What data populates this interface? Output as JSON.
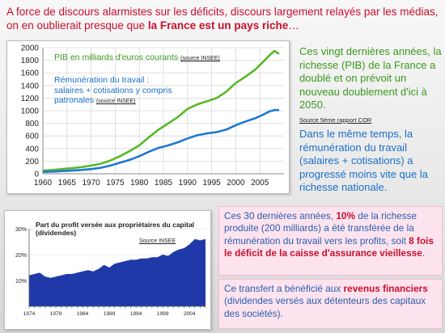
{
  "intro": {
    "part1": "A force de discours alarmistes sur les déficits, discours largement relayés par les médias, on en oublierait presque que ",
    "highlight": "la France est un pays riche",
    "part2": "…"
  },
  "right": {
    "para1": "Ces vingt dernières années, la richesse (PIB) de la France a doublé et on prévoit un nouveau doublement d'ici à 2050.",
    "para1_source": "Source 5ème rapport COR",
    "para2": "Dans le même temps, la rémunération du travail (salaires + cotisations) a progressé moins vite que la richesse nationale."
  },
  "pink1": {
    "t1": "Ces 30 dernières années, ",
    "h1": "10%",
    "t2": " de la richesse produite (200 milliards) a été transférée de la rémunération du travail vers les profits, soit ",
    "h2": "8 fois le déficit de la caisse d'assurance vieillesse",
    "t3": "."
  },
  "pink2": {
    "t1": "Ce transfert a bénéficié aux ",
    "h1": "revenus financiers",
    "t2": " (dividendes versés aux détenteurs des capitaux des sociétés)."
  },
  "colors": {
    "pib": "#58b82a",
    "remuneration": "#1f78d1",
    "profit": "#1f3aa8",
    "accent_red": "#c8102e"
  },
  "chart_data": [
    {
      "type": "line",
      "x_ticks": [
        "1960",
        "1965",
        "1970",
        "1975",
        "1980",
        "1985",
        "1990",
        "1995",
        "2000",
        "2005"
      ],
      "y_ticks": [
        "0",
        "200",
        "400",
        "600",
        "800",
        "1000",
        "1200",
        "1400",
        "1600",
        "1800",
        "2000"
      ],
      "xlim": [
        1960,
        2010
      ],
      "ylim": [
        0,
        2000
      ],
      "grid": true,
      "series": [
        {
          "name": "PIB en milliards d'euros courants",
          "source": "(source INSEE)",
          "x": [
            1960,
            1962,
            1964,
            1966,
            1968,
            1970,
            1972,
            1974,
            1976,
            1978,
            1980,
            1982,
            1984,
            1986,
            1988,
            1990,
            1992,
            1994,
            1996,
            1998,
            2000,
            2002,
            2004,
            2006,
            2007,
            2008,
            2009
          ],
          "values": [
            50,
            60,
            75,
            88,
            105,
            130,
            160,
            210,
            280,
            360,
            450,
            580,
            700,
            800,
            900,
            1030,
            1100,
            1150,
            1200,
            1300,
            1440,
            1540,
            1650,
            1800,
            1880,
            1950,
            1900
          ]
        },
        {
          "name_lines": [
            "Rémunération du travail :",
            "salaires + cotisations  y compris",
            "patronales"
          ],
          "source": "(source INSEE)",
          "x": [
            1960,
            1962,
            1964,
            1966,
            1968,
            1970,
            1972,
            1974,
            1976,
            1978,
            1980,
            1982,
            1984,
            1986,
            1988,
            1990,
            1992,
            1994,
            1996,
            1998,
            2000,
            2002,
            2004,
            2006,
            2007,
            2008,
            2009
          ],
          "values": [
            30,
            35,
            42,
            50,
            60,
            75,
            95,
            130,
            175,
            220,
            280,
            350,
            410,
            450,
            500,
            560,
            610,
            640,
            660,
            700,
            770,
            830,
            880,
            950,
            990,
            1010,
            1010
          ]
        }
      ]
    },
    {
      "type": "area",
      "title": "Part du profit versée aux propriétaires du capital (dividendes)",
      "source": "Source INSEE",
      "x_ticks": [
        "1974",
        "1979",
        "1984",
        "1989",
        "1994",
        "1999",
        "2004"
      ],
      "y_ticks": [
        "10%",
        "20%",
        "30%"
      ],
      "xlim": [
        1974,
        2007
      ],
      "ylim": [
        0,
        30
      ],
      "x": [
        1974,
        1975,
        1976,
        1977,
        1978,
        1979,
        1980,
        1981,
        1982,
        1983,
        1984,
        1985,
        1986,
        1987,
        1988,
        1989,
        1990,
        1991,
        1992,
        1993,
        1994,
        1995,
        1996,
        1997,
        1998,
        1999,
        2000,
        2001,
        2002,
        2003,
        2004,
        2005,
        2006,
        2007
      ],
      "values": [
        12,
        12.5,
        13,
        11.5,
        11,
        11.5,
        12,
        12.5,
        12.5,
        13,
        13.5,
        14,
        13.5,
        14.5,
        16,
        15,
        16.5,
        17,
        17.5,
        18,
        18,
        18.5,
        18.5,
        19,
        19,
        20,
        19.5,
        21,
        22,
        22.5,
        24,
        26,
        25.5,
        26
      ]
    }
  ]
}
